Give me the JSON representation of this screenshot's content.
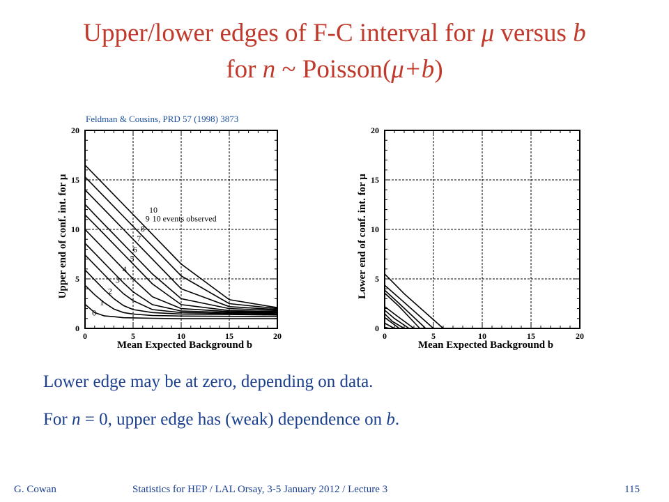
{
  "slide": {
    "title_line1_pre": "Upper/lower edges of F-C interval for ",
    "title_mu": "μ",
    "title_line1_mid": " versus ",
    "title_b": "b",
    "title_line2_pre": "for ",
    "title_n": "n",
    "title_line2_post": " ~ Poisson(",
    "title_mub": "μ+b",
    "title_close": ")",
    "citation": "Feldman & Cousins, PRD 57 (1998) 3873",
    "body": {
      "line1": "Lower edge may be at zero, depending on data.",
      "line2_pre": "For ",
      "line2_n": "n",
      "line2_mid": " = 0, upper edge has (weak) dependence on ",
      "line2_b": "b",
      "line2_end": "."
    },
    "footer": {
      "author": "G. Cowan",
      "course": "Statistics for HEP / LAL Orsay, 3-5 January  2012 / Lecture 3",
      "page": "115"
    }
  },
  "chart_data": [
    {
      "type": "line",
      "xlabel": "Mean Expected Background b",
      "ylabel": "Upper end of conf. int. for μ",
      "xlim": [
        0,
        20
      ],
      "ylim": [
        0,
        20
      ],
      "xticks": [
        0,
        5,
        10,
        15,
        20
      ],
      "yticks": [
        0,
        5,
        10,
        15,
        20
      ],
      "grid": true,
      "annotation": "10 events observed",
      "series": [
        {
          "name": "0",
          "x": [
            0,
            1,
            2,
            3,
            4,
            5,
            7,
            10,
            15,
            20
          ],
          "y": [
            2.44,
            1.6,
            1.26,
            1.18,
            1.08,
            1.06,
            1.02,
            0.98,
            0.98,
            0.98
          ]
        },
        {
          "name": "1",
          "x": [
            0,
            1,
            2,
            3,
            4,
            5,
            7,
            10,
            15,
            20
          ],
          "y": [
            4.36,
            3.4,
            2.6,
            1.95,
            1.6,
            1.45,
            1.3,
            1.25,
            1.22,
            1.2
          ]
        },
        {
          "name": "2",
          "x": [
            0,
            1,
            2,
            3,
            4,
            5,
            7,
            10,
            15,
            20
          ],
          "y": [
            5.91,
            4.9,
            3.9,
            3.0,
            2.3,
            1.9,
            1.6,
            1.45,
            1.4,
            1.35
          ]
        },
        {
          "name": "3",
          "x": [
            0,
            1,
            2,
            3,
            4,
            5,
            7,
            10,
            15,
            20
          ],
          "y": [
            7.42,
            6.42,
            5.42,
            4.42,
            3.5,
            2.8,
            1.9,
            1.6,
            1.5,
            1.45
          ]
        },
        {
          "name": "4",
          "x": [
            0,
            1,
            2,
            3,
            4,
            5,
            7,
            10,
            15,
            20
          ],
          "y": [
            8.6,
            7.6,
            6.6,
            5.6,
            4.6,
            3.7,
            2.4,
            1.75,
            1.6,
            1.55
          ]
        },
        {
          "name": "5",
          "x": [
            0,
            1,
            2,
            3,
            4,
            5,
            7,
            10,
            15,
            20
          ],
          "y": [
            9.99,
            8.99,
            7.99,
            6.99,
            5.99,
            4.99,
            3.2,
            2.0,
            1.7,
            1.6
          ]
        },
        {
          "name": "6",
          "x": [
            0,
            1,
            2,
            3,
            4,
            5,
            7,
            10,
            15,
            20
          ],
          "y": [
            11.47,
            10.5,
            9.5,
            8.5,
            7.5,
            6.5,
            4.5,
            2.4,
            1.8,
            1.7
          ]
        },
        {
          "name": "7",
          "x": [
            0,
            1,
            2,
            3,
            4,
            5,
            7,
            10,
            15,
            20
          ],
          "y": [
            12.53,
            11.5,
            10.5,
            9.5,
            8.5,
            7.5,
            5.5,
            3.0,
            2.0,
            1.8
          ]
        },
        {
          "name": "8",
          "x": [
            0,
            1,
            2,
            3,
            4,
            5,
            7,
            10,
            15,
            20
          ],
          "y": [
            13.99,
            13.0,
            12.0,
            11.0,
            10.0,
            9.0,
            7.0,
            4.0,
            2.2,
            1.9
          ]
        },
        {
          "name": "9",
          "x": [
            0,
            1,
            2,
            3,
            4,
            5,
            7,
            10,
            15,
            20
          ],
          "y": [
            15.3,
            14.3,
            13.3,
            12.3,
            11.3,
            10.3,
            8.3,
            5.3,
            2.5,
            2.0
          ]
        },
        {
          "name": "10",
          "x": [
            0,
            1,
            2,
            3,
            4,
            5,
            7,
            10,
            15,
            20
          ],
          "y": [
            16.5,
            15.5,
            14.5,
            13.5,
            12.5,
            11.5,
            9.5,
            6.5,
            2.9,
            2.1
          ]
        }
      ]
    },
    {
      "type": "line",
      "xlabel": "Mean Expected Background b",
      "ylabel": "Lower end of conf. int. for μ",
      "xlim": [
        0,
        20
      ],
      "ylim": [
        0,
        20
      ],
      "xticks": [
        0,
        5,
        10,
        15,
        20
      ],
      "yticks": [
        0,
        5,
        10,
        15,
        20
      ],
      "grid": true,
      "series": [
        {
          "x": [
            0,
            0.5
          ],
          "y": [
            0.11,
            0
          ]
        },
        {
          "x": [
            0,
            1.0
          ],
          "y": [
            0.53,
            0
          ]
        },
        {
          "x": [
            0,
            1.5
          ],
          "y": [
            1.1,
            0
          ]
        },
        {
          "x": [
            0,
            0.8,
            2.0
          ],
          "y": [
            1.47,
            0.7,
            0
          ]
        },
        {
          "x": [
            0,
            1.0,
            2.5
          ],
          "y": [
            1.84,
            1.0,
            0
          ]
        },
        {
          "x": [
            0,
            1.2,
            3.0
          ],
          "y": [
            2.21,
            1.3,
            0
          ]
        },
        {
          "x": [
            0,
            1.5,
            3.6
          ],
          "y": [
            3.56,
            2.2,
            0
          ]
        },
        {
          "x": [
            0,
            1.5,
            4.2
          ],
          "y": [
            3.86,
            2.5,
            0
          ]
        },
        {
          "x": [
            0,
            1.8,
            5.0
          ],
          "y": [
            4.36,
            2.8,
            0
          ]
        },
        {
          "x": [
            0,
            2.0,
            6.0
          ],
          "y": [
            5.5,
            3.5,
            0
          ]
        }
      ]
    }
  ]
}
